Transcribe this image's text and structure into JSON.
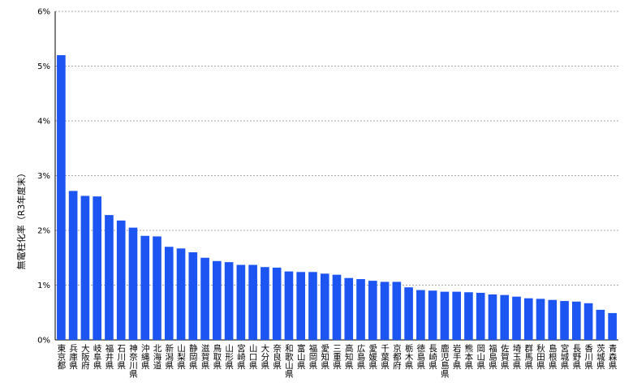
{
  "chart_data": {
    "type": "bar",
    "y_label": "無電柱化率（R3年度末）",
    "categories": [
      "東京都",
      "兵庫県",
      "大阪府",
      "岐阜県",
      "福井県",
      "石川県",
      "神奈川県",
      "沖縄県",
      "北海道",
      "新潟県",
      "山梨県",
      "静岡県",
      "滋賀県",
      "鳥取県",
      "山形県",
      "宮崎県",
      "山口県",
      "大分県",
      "奈良県",
      "和歌山県",
      "富山県",
      "福岡県",
      "愛知県",
      "三重県",
      "高知県",
      "広島県",
      "愛媛県",
      "千葉県",
      "京都府",
      "栃木県",
      "徳島県",
      "長崎県",
      "鹿児島県",
      "岩手県",
      "熊本県",
      "岡山県",
      "福島県",
      "佐賀県",
      "埼玉県",
      "群馬県",
      "秋田県",
      "島根県",
      "宮城県",
      "長野県",
      "香川県",
      "茨城県",
      "青森県"
    ],
    "values": [
      5.2,
      2.72,
      2.63,
      2.62,
      2.28,
      2.18,
      2.05,
      1.9,
      1.89,
      1.7,
      1.67,
      1.6,
      1.5,
      1.44,
      1.42,
      1.37,
      1.37,
      1.33,
      1.32,
      1.25,
      1.24,
      1.24,
      1.21,
      1.19,
      1.13,
      1.11,
      1.08,
      1.06,
      1.06,
      0.96,
      0.91,
      0.9,
      0.88,
      0.88,
      0.87,
      0.86,
      0.83,
      0.82,
      0.79,
      0.76,
      0.75,
      0.73,
      0.71,
      0.7,
      0.67,
      0.55,
      0.49
    ],
    "color": "#1c55f2",
    "ylim": [
      0,
      6
    ],
    "yticks": [
      {
        "value": 0,
        "label": "0%"
      },
      {
        "value": 1,
        "label": "1%"
      },
      {
        "value": 2,
        "label": "2%"
      },
      {
        "value": 3,
        "label": "3%"
      },
      {
        "value": 4,
        "label": "4%"
      },
      {
        "value": 5,
        "label": "5%"
      },
      {
        "value": 6,
        "label": "6%"
      }
    ],
    "grid": true
  }
}
